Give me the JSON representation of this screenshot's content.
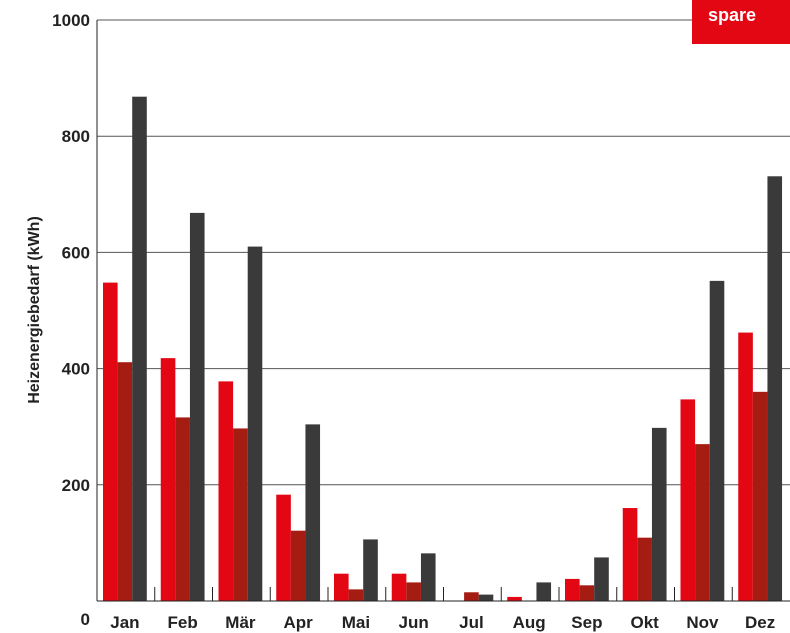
{
  "chart_data": {
    "type": "bar",
    "categories": [
      "Jan",
      "Feb",
      "Mär",
      "Apr",
      "Mai",
      "Jun",
      "Jul",
      "Aug",
      "Sep",
      "Okt",
      "Nov",
      "Dez"
    ],
    "series": [
      {
        "color": "#e30613",
        "values": [
          548,
          418,
          378,
          183,
          47,
          47,
          0,
          7,
          38,
          160,
          347,
          462
        ]
      },
      {
        "color": "#a51c12",
        "values": [
          411,
          316,
          297,
          121,
          20,
          32,
          15,
          0,
          27,
          109,
          270,
          360
        ]
      },
      {
        "color": "#3a3a3a",
        "values": [
          868,
          668,
          610,
          304,
          106,
          82,
          11,
          32,
          75,
          298,
          551,
          731
        ]
      }
    ],
    "ylabel": "Heizenergiebedarf (kWh)",
    "ylim": [
      0,
      1000
    ],
    "yticks": [
      "0",
      "200",
      "400",
      "600",
      "800",
      "1000"
    ],
    "ytick_values": [
      0,
      200,
      400,
      600,
      800,
      1000
    ],
    "grid": true,
    "legend": "none"
  },
  "badge": {
    "text": "spare",
    "color": "#e30613"
  }
}
